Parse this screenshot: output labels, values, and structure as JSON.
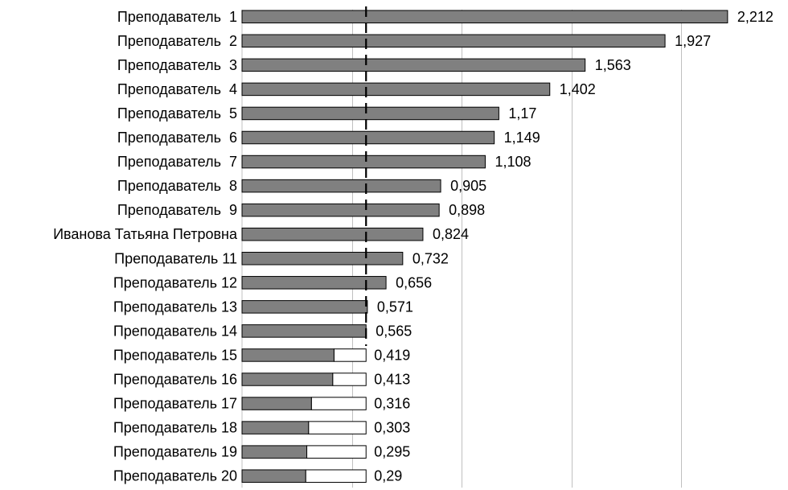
{
  "chart_data": {
    "type": "bar",
    "orientation": "horizontal",
    "title": "",
    "xlabel": "",
    "ylabel": "",
    "grid": true,
    "xlim": [
      0,
      2.2
    ],
    "reference_line": 0.565,
    "categories": [
      "Преподаватель  1",
      "Преподаватель  2",
      "Преподаватель  3",
      "Преподаватель  4",
      "Преподаватель  5",
      "Преподаватель  6",
      "Преподаватель  7",
      "Преподаватель  8",
      "Преподаватель  9",
      "Иванова Татьяна Петровна",
      "Преподаватель 11",
      "Преподаватель 12",
      "Преподаватель 13",
      "Преподаватель 14",
      "Преподаватель 15",
      "Преподаватель 16",
      "Преподаватель 17",
      "Преподаватель 18",
      "Преподаватель 19",
      "Преподаватель 20"
    ],
    "values": [
      2.212,
      1.927,
      1.563,
      1.402,
      1.17,
      1.149,
      1.108,
      0.905,
      0.898,
      0.824,
      0.732,
      0.656,
      0.571,
      0.565,
      0.419,
      0.413,
      0.316,
      0.303,
      0.295,
      0.29
    ],
    "value_labels": [
      "2,212",
      "1,927",
      "1,563",
      "1,402",
      "1,17",
      "1,149",
      "1,108",
      "0,905",
      "0,898",
      "0,824",
      "0,732",
      "0,656",
      "0,571",
      "0,565",
      "0,419",
      "0,413",
      "0,316",
      "0,303",
      "0,295",
      "0,29"
    ],
    "colors": {
      "bar": "#808080",
      "bar_border": "#000000",
      "shortfall_fill": "#ffffff",
      "grid": "#c0c0c0",
      "reference_line": "#000000"
    }
  }
}
